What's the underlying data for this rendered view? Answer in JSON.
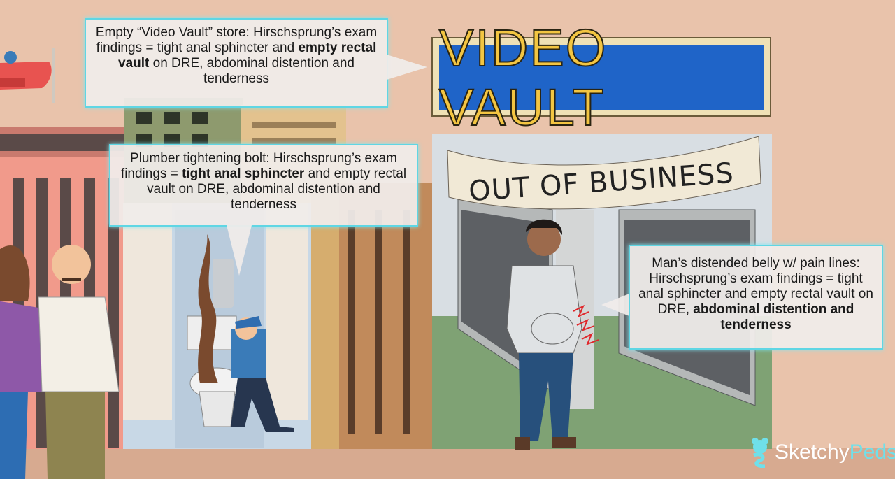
{
  "sign": {
    "text": "VIDEO VAULT"
  },
  "banner": {
    "text": "OUT OF BUSINESS"
  },
  "callouts": {
    "video_vault": {
      "pre": "Empty “Video Vault” store: Hirschsprung’s exam findings = tight anal sphincter and ",
      "bold": "empty rectal vault",
      "post": " on DRE, abdominal distention and tenderness"
    },
    "plumber": {
      "pre": "Plumber tightening bolt: Hirschsprung’s exam findings = ",
      "bold": "tight anal sphincter",
      "post": " and empty rectal vault on DRE, abdominal distention and tenderness"
    },
    "man": {
      "pre": "Man’s distended belly w/ pain lines: Hirschsprung’s exam findings = tight anal sphincter and empty rectal vault on DRE, ",
      "bold": "abdominal distention and tenderness",
      "post": ""
    }
  },
  "logo": {
    "part1": "Sketchy",
    "part2": "Peds"
  },
  "colors": {
    "callout_border": "#5fd6e4",
    "sign_bg": "#1f64c8",
    "sign_text": "#f3c542",
    "wall": "#e9c3ab"
  }
}
